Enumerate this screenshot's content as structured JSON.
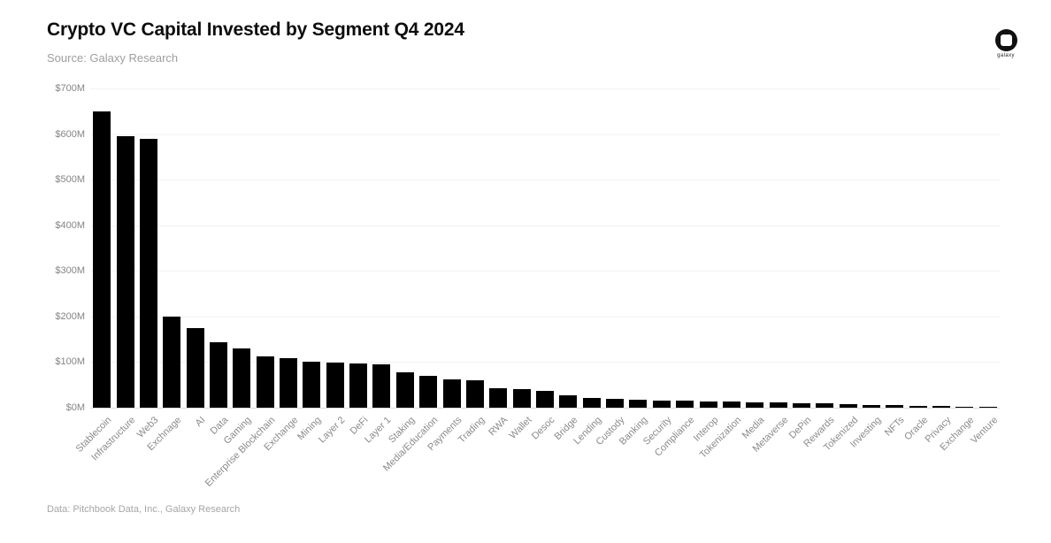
{
  "header": {
    "title": "Crypto VC Capital Invested by Segment Q4 2024",
    "source": "Source: Galaxy Research"
  },
  "logo": {
    "label": "galaxy"
  },
  "footer": {
    "text": "Data: Pitchbook Data, Inc., Galaxy Research"
  },
  "colors": {
    "background": "#ffffff",
    "bar": "#000000",
    "title": "#0d0d0d",
    "subtitle": "#9e9e9e",
    "axis_label": "#858585",
    "category_label": "#8a8a8a",
    "gridline": "#f2f2f2",
    "axis_line": "#dcdcdc",
    "footer_text": "#a6a6a6"
  },
  "chart_data": {
    "type": "bar",
    "title": "Crypto VC Capital Invested by Segment Q4 2024",
    "subtitle": "Source: Galaxy Research",
    "attribution": "Data: Pitchbook Data, Inc., Galaxy Research",
    "categories": [
      "Stablecoin",
      "Infrastructure",
      "Web3",
      "Exchnage",
      "AI",
      "Data",
      "Gaming",
      "Enterprise Blockchain",
      "Exchange",
      "Mining",
      "Layer 2",
      "DeFi",
      "Layer 1",
      "Staking",
      "Media/Education",
      "Payments",
      "Trading",
      "RWA",
      "Wallet",
      "Desoc",
      "Bridge",
      "Lending",
      "Custody",
      "Banking",
      "Security",
      "Compliance",
      "Interop",
      "Tokenization",
      "Media",
      "Metaverse",
      "DePin",
      "Rewards",
      "Tokenized",
      "Investing",
      "NFTs",
      "Oracle",
      "Privacy",
      "Exchange",
      "Venture"
    ],
    "values": [
      650,
      595,
      590,
      199,
      175,
      143,
      130,
      113,
      108,
      101,
      99,
      97,
      95,
      78,
      69,
      62,
      60,
      42,
      40,
      37,
      27,
      21,
      20,
      18,
      16,
      15,
      14,
      13,
      12,
      11,
      10,
      9,
      8,
      6,
      5,
      3.5,
      3,
      1.5,
      1
    ],
    "xlabel": "",
    "ylabel": "",
    "ylim": [
      0,
      700
    ],
    "ytick_labels": [
      "$0M",
      "$100M",
      "$200M",
      "$300M",
      "$400M",
      "$500M",
      "$600M",
      "$700M"
    ],
    "grid": true,
    "legend": false,
    "bar_color": "#000000"
  }
}
